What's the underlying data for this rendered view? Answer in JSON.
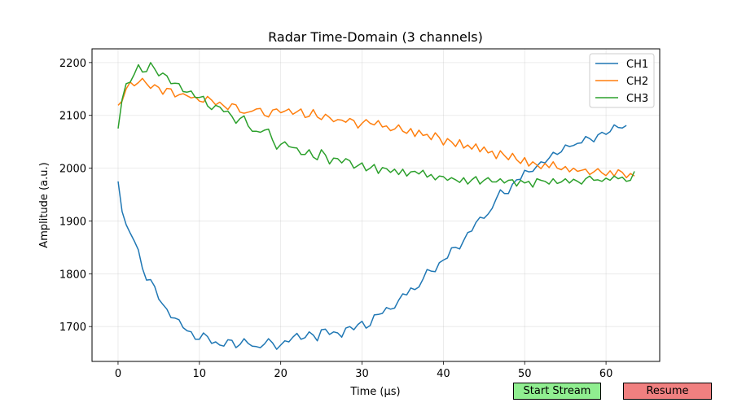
{
  "chart_data": {
    "type": "line",
    "title": "Radar Time-Domain (3 channels)",
    "xlabel": "Time (µs)",
    "ylabel": "Amplitude (a.u.)",
    "xlim": [
      -3.2,
      66.6
    ],
    "ylim": [
      1634,
      2226
    ],
    "xticks": [
      0,
      10,
      20,
      30,
      40,
      50,
      60
    ],
    "yticks": [
      1700,
      1800,
      1900,
      2000,
      2100,
      2200
    ],
    "grid": true,
    "legend_position": "upper right",
    "x": [
      0,
      0.5,
      1,
      1.5,
      2,
      2.5,
      3,
      3.5,
      4,
      4.5,
      5,
      5.5,
      6,
      6.5,
      7,
      7.5,
      8,
      8.5,
      9,
      9.5,
      10,
      10.5,
      11,
      11.5,
      12,
      12.5,
      13,
      13.5,
      14,
      14.5,
      15,
      15.5,
      16,
      16.5,
      17,
      17.5,
      18,
      18.5,
      19,
      19.5,
      20,
      20.5,
      21,
      21.5,
      22,
      22.5,
      23,
      23.5,
      24,
      24.5,
      25,
      25.5,
      26,
      26.5,
      27,
      27.5,
      28,
      28.5,
      29,
      29.5,
      30,
      30.5,
      31,
      31.5,
      32,
      32.5,
      33,
      33.5,
      34,
      34.5,
      35,
      35.5,
      36,
      36.5,
      37,
      37.5,
      38,
      38.5,
      39,
      39.5,
      40,
      40.5,
      41,
      41.5,
      42,
      42.5,
      43,
      43.5,
      44,
      44.5,
      45,
      45.5,
      46,
      46.5,
      47,
      47.5,
      48,
      48.5,
      49,
      49.5,
      50,
      50.5,
      51,
      51.5,
      52,
      52.5,
      53,
      53.5,
      54,
      54.5,
      55,
      55.5,
      56,
      56.5,
      57,
      57.5,
      58,
      58.5,
      59,
      59.5,
      60,
      60.5,
      61,
      61.5,
      62,
      62.5,
      63,
      63.5
    ],
    "series": [
      {
        "name": "CH1",
        "color": "#1f77b4",
        "values": [
          1975,
          1918,
          1893,
          1877,
          1862,
          1845,
          1810,
          1788,
          1789,
          1776,
          1752,
          1742,
          1733,
          1717,
          1716,
          1713,
          1698,
          1692,
          1690,
          1676,
          1676,
          1688,
          1681,
          1668,
          1671,
          1665,
          1663,
          1675,
          1674,
          1660,
          1666,
          1677,
          1668,
          1663,
          1662,
          1660,
          1667,
          1677,
          1669,
          1657,
          1665,
          1673,
          1671,
          1680,
          1687,
          1676,
          1679,
          1690,
          1684,
          1673,
          1694,
          1695,
          1685,
          1690,
          1688,
          1680,
          1697,
          1700,
          1694,
          1704,
          1710,
          1697,
          1702,
          1722,
          1723,
          1725,
          1736,
          1733,
          1735,
          1750,
          1762,
          1760,
          1773,
          1770,
          1775,
          1790,
          1808,
          1805,
          1804,
          1821,
          1826,
          1830,
          1849,
          1850,
          1847,
          1863,
          1878,
          1881,
          1897,
          1907,
          1905,
          1913,
          1924,
          1942,
          1959,
          1952,
          1952,
          1970,
          1978,
          1979,
          1996,
          1993,
          1994,
          2004,
          2012,
          2010,
          2019,
          2030,
          2026,
          2031,
          2044,
          2041,
          2043,
          2047,
          2048,
          2060,
          2056,
          2050,
          2063,
          2068,
          2064,
          2069,
          2082,
          2077,
          2076,
          2081
        ]
      },
      {
        "name": "CH2",
        "color": "#ff7f0e",
        "values": [
          2119,
          2127,
          2150,
          2163,
          2156,
          2162,
          2170,
          2160,
          2151,
          2158,
          2153,
          2140,
          2151,
          2150,
          2135,
          2139,
          2141,
          2137,
          2133,
          2135,
          2127,
          2125,
          2136,
          2129,
          2120,
          2125,
          2118,
          2111,
          2122,
          2120,
          2106,
          2104,
          2106,
          2108,
          2112,
          2113,
          2100,
          2097,
          2110,
          2112,
          2105,
          2108,
          2112,
          2102,
          2107,
          2112,
          2096,
          2098,
          2111,
          2097,
          2092,
          2102,
          2096,
          2088,
          2092,
          2091,
          2087,
          2094,
          2090,
          2076,
          2085,
          2092,
          2085,
          2082,
          2090,
          2078,
          2080,
          2071,
          2074,
          2082,
          2070,
          2066,
          2075,
          2060,
          2072,
          2062,
          2064,
          2054,
          2067,
          2058,
          2044,
          2056,
          2050,
          2041,
          2054,
          2038,
          2044,
          2036,
          2046,
          2031,
          2040,
          2029,
          2032,
          2018,
          2033,
          2024,
          2016,
          2028,
          2016,
          2009,
          2020,
          2004,
          2012,
          2006,
          1999,
          2009,
          2001,
          2012,
          2000,
          1997,
          2003,
          1993,
          2000,
          1994,
          1996,
          1998,
          1988,
          1993,
          1999,
          1991,
          1986,
          1995,
          1985,
          1997,
          1992,
          1982,
          1990,
          1985
        ]
      },
      {
        "name": "CH3",
        "color": "#2ca02c",
        "values": [
          2075,
          2130,
          2160,
          2163,
          2178,
          2196,
          2182,
          2183,
          2200,
          2188,
          2175,
          2180,
          2175,
          2160,
          2161,
          2160,
          2145,
          2144,
          2146,
          2134,
          2134,
          2136,
          2118,
          2111,
          2119,
          2116,
          2107,
          2108,
          2098,
          2085,
          2094,
          2099,
          2080,
          2070,
          2070,
          2068,
          2072,
          2074,
          2053,
          2036,
          2045,
          2050,
          2041,
          2039,
          2038,
          2026,
          2026,
          2035,
          2021,
          2016,
          2035,
          2025,
          2008,
          2019,
          2018,
          2010,
          2018,
          2014,
          2000,
          2005,
          2010,
          1995,
          2000,
          2007,
          1990,
          2001,
          1999,
          1992,
          1998,
          1988,
          1998,
          1985,
          1993,
          1994,
          1989,
          1996,
          1983,
          1988,
          1978,
          1985,
          1984,
          1977,
          1982,
          1978,
          1973,
          1982,
          1970,
          1978,
          1984,
          1970,
          1977,
          1982,
          1974,
          1974,
          1980,
          1972,
          1977,
          1978,
          1966,
          1977,
          1972,
          1975,
          1964,
          1980,
          1977,
          1975,
          1970,
          1980,
          1971,
          1974,
          1980,
          1972,
          1979,
          1975,
          1970,
          1980,
          1985,
          1977,
          1978,
          1975,
          1981,
          1977,
          1985,
          1980,
          1983,
          1975,
          1977,
          1994
        ]
      }
    ]
  },
  "controls": {
    "start_stream_label": "Start Stream",
    "start_stream_color": "#90ee90",
    "resume_label": "Resume",
    "resume_color": "#f08080"
  }
}
